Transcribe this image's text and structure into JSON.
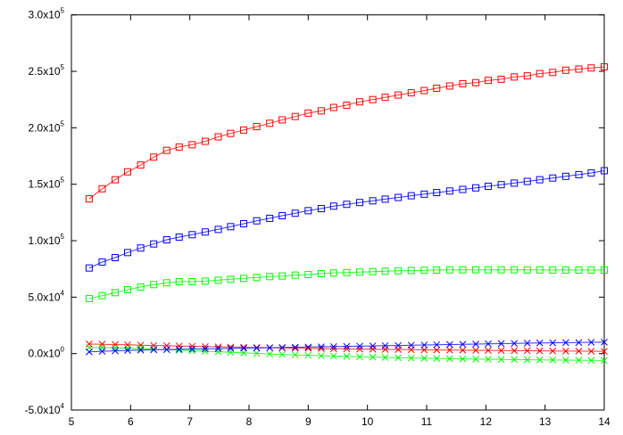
{
  "chart_data": {
    "type": "line",
    "title": "",
    "xlabel": "",
    "ylabel": "",
    "xlim": [
      5,
      14
    ],
    "ylim": [
      -50000,
      300000
    ],
    "grid": false,
    "x_ticks": [
      "5",
      "6",
      "7",
      "8",
      "9",
      "10",
      "11",
      "12",
      "13",
      "14"
    ],
    "x_tick_values": [
      5,
      6,
      7,
      8,
      9,
      10,
      11,
      12,
      13,
      14
    ],
    "y_ticks": [
      {
        "value": 300000,
        "mantissa": "3.0x10",
        "exp": "5"
      },
      {
        "value": 250000,
        "mantissa": "2.5x10",
        "exp": "5"
      },
      {
        "value": 200000,
        "mantissa": "2.0x10",
        "exp": "5"
      },
      {
        "value": 150000,
        "mantissa": "1.5x10",
        "exp": "5"
      },
      {
        "value": 100000,
        "mantissa": "1.0x10",
        "exp": "5"
      },
      {
        "value": 50000,
        "mantissa": "5.0x10",
        "exp": "4"
      },
      {
        "value": 0,
        "mantissa": "0.0x10",
        "exp": "0"
      },
      {
        "value": -50000,
        "mantissa": "-5.0x10",
        "exp": "4"
      }
    ],
    "x": [
      5.3,
      5.52,
      5.74,
      5.95,
      6.17,
      6.39,
      6.61,
      6.82,
      7.04,
      7.26,
      7.48,
      7.69,
      7.91,
      8.13,
      8.35,
      8.56,
      8.78,
      9.0,
      9.22,
      9.43,
      9.65,
      9.87,
      10.09,
      10.3,
      10.52,
      10.74,
      10.96,
      11.17,
      11.39,
      11.61,
      11.83,
      12.04,
      12.26,
      12.48,
      12.7,
      12.91,
      13.13,
      13.35,
      13.57,
      13.78,
      14.0
    ],
    "series": [
      {
        "color": "#ff0000",
        "marker": "square",
        "values": [
          137000.0,
          146000.0,
          154000.0,
          161000.0,
          167000.0,
          174000.0,
          180000.0,
          183000.0,
          185000.0,
          188000.0,
          192000.0,
          195000.0,
          198000.0,
          201000.0,
          204000.0,
          207000.0,
          210000.0,
          213000.0,
          215000.0,
          218000.0,
          220000.0,
          223000.0,
          225000.0,
          227000.0,
          229000.0,
          231000.0,
          233000.0,
          235000.0,
          237000.0,
          239000.0,
          240000.0,
          242000.0,
          243000.0,
          245000.0,
          246000.0,
          248000.0,
          249000.0,
          251000.0,
          252000.0,
          253000.0,
          254000.0
        ]
      },
      {
        "color": "#0000ff",
        "marker": "square",
        "values": [
          75800.0,
          81100.0,
          85000.0,
          89500.0,
          93500.0,
          97100.0,
          100800.0,
          103200.0,
          105300.0,
          107700.0,
          110000.0,
          112400.0,
          115000.0,
          117600.0,
          119800.0,
          122100.0,
          124300.0,
          126600.0,
          128400.0,
          130600.0,
          132200.0,
          133800.0,
          135300.0,
          136800.0,
          138300.0,
          139800.0,
          141200.0,
          142600.0,
          144000.0,
          145400.0,
          146800.0,
          148200.0,
          149600.0,
          151000.0,
          152500.0,
          154000.0,
          155500.0,
          157000.0,
          158500.0,
          160000.0,
          162000.0
        ]
      },
      {
        "color": "#00ff00",
        "marker": "square",
        "values": [
          48700.0,
          51300.0,
          54000.0,
          56600.0,
          59000.0,
          61100.0,
          62700.0,
          63700.0,
          63700.0,
          64200.0,
          65000.0,
          65800.0,
          66600.0,
          67400.0,
          68200.0,
          68700.0,
          69500.0,
          70000.0,
          70800.0,
          71400.0,
          71800.0,
          72200.0,
          72600.0,
          73000.0,
          73300.0,
          73600.0,
          73800.0,
          74000.0,
          74100.0,
          74200.0,
          74200.0,
          74200.0,
          74200.0,
          74200.0,
          74100.0,
          74100.0,
          74000.0,
          74000.0,
          74000.0,
          74000.0,
          74000.0
        ]
      },
      {
        "color": "#ff0000",
        "marker": "cross",
        "values": [
          8500.0,
          8300.0,
          8000.0,
          7800.0,
          7500.0,
          7200.0,
          7000.0,
          6700.0,
          6500.0,
          6200.0,
          6000.0,
          5800.0,
          5600.0,
          5400.0,
          5200.0,
          5000.0,
          4800.0,
          4700.0,
          4500.0,
          4300.0,
          4200.0,
          4000.0,
          3900.0,
          3700.0,
          3600.0,
          3500.0,
          3300.0,
          3200.0,
          3100.0,
          3000.0,
          2900.0,
          2800.0,
          2700.0,
          2600.0,
          2500.0,
          2400.0,
          2300.0,
          2200.0,
          2200.0,
          2100.0,
          2000.0
        ]
      },
      {
        "color": "#00ff00",
        "marker": "cross",
        "values": [
          5500.0,
          5300.0,
          5000.0,
          4700.0,
          4300.0,
          3900.0,
          3500.0,
          3000.0,
          2600.0,
          2100.0,
          1600.0,
          1100.0,
          600.0,
          200.0,
          -300.0,
          -700.0,
          -1100.0,
          -1500.0,
          -1900.0,
          -2200.0,
          -2500.0,
          -2800.0,
          -3100.0,
          -3400.0,
          -3600.0,
          -3900.0,
          -4100.0,
          -4300.0,
          -4500.0,
          -4700.0,
          -4900.0,
          -5000.0,
          -5200.0,
          -5300.0,
          -5500.0,
          -5600.0,
          -5700.0,
          -5800.0,
          -5900.0,
          -6000.0,
          -6100.0
        ]
      },
      {
        "color": "#0000ff",
        "marker": "cross",
        "values": [
          1500.0,
          2000.0,
          2400.0,
          2800.0,
          3100.0,
          3400.0,
          3600.0,
          3800.0,
          4000.0,
          4200.0,
          4400.0,
          4600.0,
          4800.0,
          5000.0,
          5200.0,
          5400.0,
          5600.0,
          5800.0,
          6000.0,
          6200.0,
          6400.0,
          6600.0,
          6800.0,
          7000.0,
          7200.0,
          7400.0,
          7600.0,
          7800.0,
          8000.0,
          8200.0,
          8400.0,
          8600.0,
          8800.0,
          9000.0,
          9200.0,
          9400.0,
          9500.0,
          9700.0,
          9800.0,
          10000.0,
          10100.0
        ]
      }
    ]
  }
}
